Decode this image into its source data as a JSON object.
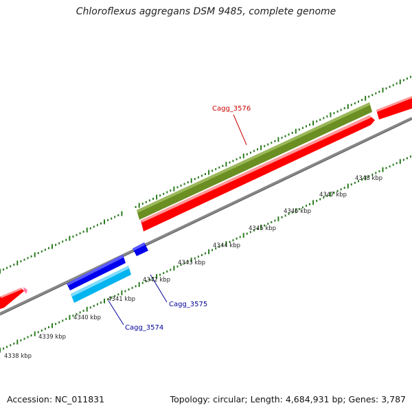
{
  "title": "Chloroflexus aggregans DSM 9485, complete genome",
  "footer": {
    "accession": "Accession: NC_011831",
    "summary": "Topology: circular; Length: 4,684,931 bp; Genes: 3,787"
  },
  "scale": {
    "ticks": [
      {
        "label": "4338 kbp"
      },
      {
        "label": "4339 kbp"
      },
      {
        "label": "4340 kbp"
      },
      {
        "label": "4341 kbp"
      },
      {
        "label": "4342 kbp"
      },
      {
        "label": "4343 kbp"
      },
      {
        "label": "4344 kbp"
      },
      {
        "label": "4345 kbp"
      },
      {
        "label": "4346 kbp"
      },
      {
        "label": "4347 kbp"
      },
      {
        "label": "4348 kbp"
      }
    ]
  },
  "genes": [
    {
      "label": "Cagg_3576",
      "color": "#cc0000"
    },
    {
      "label": "Cagg_3575",
      "color": "#000099"
    },
    {
      "label": "Cagg_3574",
      "color": "#000099"
    }
  ],
  "colors": {
    "forward_cds": "#ff0000",
    "reverse_cds": "#0000ee",
    "reverse_rna": "#00b4f0",
    "forward_feature": "#6b8e23",
    "backbone": "#888888",
    "tick": "#2a7a1f",
    "misc": "#ff7aa8"
  }
}
